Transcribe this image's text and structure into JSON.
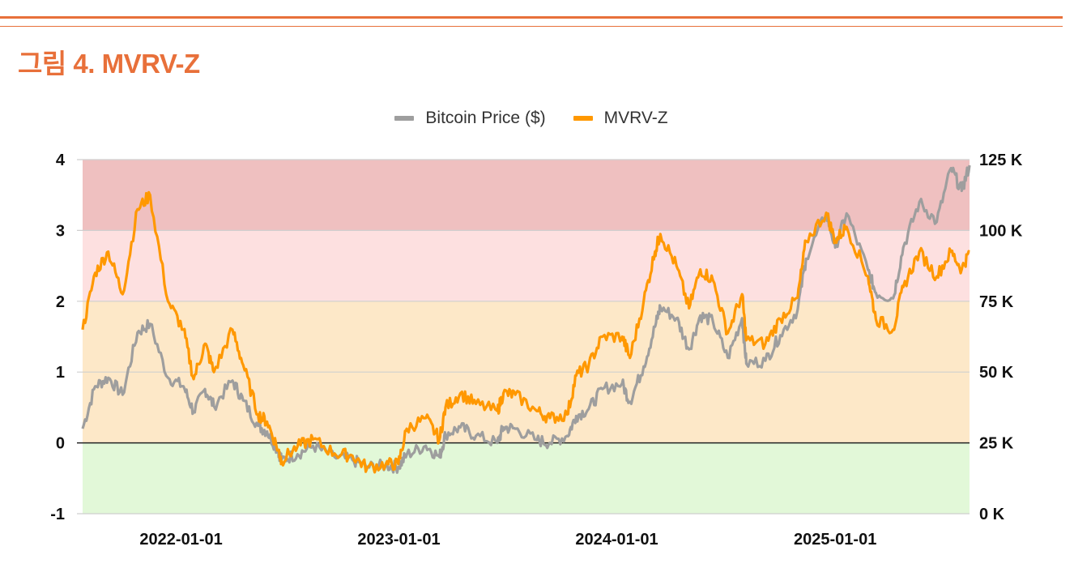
{
  "figure": {
    "title": "그림 4. MVRV-Z",
    "accent": "#e8703a"
  },
  "chart_data": {
    "type": "line",
    "legend": [
      {
        "name": "Bitcoin Price ($)",
        "color": "#9e9e9e"
      },
      {
        "name": "MVRV-Z",
        "color": "#ff9800"
      }
    ],
    "legend_position": "top-center",
    "x_ticks": [
      "2022-01-01",
      "2023-01-01",
      "2024-01-01",
      "2025-01-01"
    ],
    "x_range": [
      "2021-07-20",
      "2025-08-14"
    ],
    "y_left": {
      "min": -1,
      "max": 4,
      "ticks": [
        "-1",
        "0",
        "1",
        "2",
        "3",
        "4"
      ]
    },
    "y_right": {
      "min": 0,
      "max": 125000,
      "ticks": [
        "0 K",
        "25 K",
        "50 K",
        "75 K",
        "100 K",
        "125 K"
      ]
    },
    "bands": [
      {
        "from": 3,
        "to": 4,
        "color": "#efc0c0"
      },
      {
        "from": 2,
        "to": 3,
        "color": "#fde0e0"
      },
      {
        "from": 0,
        "to": 2,
        "color": "#fde8c8"
      },
      {
        "from": -1,
        "to": 0,
        "color": "#e2f8d8"
      }
    ],
    "zero_line": 0,
    "grid": true,
    "series": [
      {
        "name": "Bitcoin Price ($)",
        "axis": "right",
        "color": "#9e9e9e",
        "points": [
          [
            "2021-07-20",
            30000
          ],
          [
            "2021-08-10",
            45000
          ],
          [
            "2021-09-01",
            48000
          ],
          [
            "2021-09-25",
            42000
          ],
          [
            "2021-10-20",
            64000
          ],
          [
            "2021-11-10",
            67000
          ],
          [
            "2021-12-10",
            48000
          ],
          [
            "2022-01-05",
            45000
          ],
          [
            "2022-01-22",
            36000
          ],
          [
            "2022-02-10",
            44000
          ],
          [
            "2022-02-25",
            38000
          ],
          [
            "2022-03-28",
            47000
          ],
          [
            "2022-04-15",
            40000
          ],
          [
            "2022-05-10",
            31000
          ],
          [
            "2022-05-25",
            29000
          ],
          [
            "2022-06-13",
            22000
          ],
          [
            "2022-06-18",
            19000
          ],
          [
            "2022-07-15",
            21000
          ],
          [
            "2022-08-10",
            24000
          ],
          [
            "2022-09-15",
            20000
          ],
          [
            "2022-10-15",
            19000
          ],
          [
            "2022-11-09",
            16500
          ],
          [
            "2022-12-10",
            17000
          ],
          [
            "2022-12-31",
            16500
          ],
          [
            "2023-01-14",
            20800
          ],
          [
            "2023-02-15",
            24000
          ],
          [
            "2023-03-10",
            20000
          ],
          [
            "2023-03-20",
            28000
          ],
          [
            "2023-04-14",
            30500
          ],
          [
            "2023-05-10",
            27500
          ],
          [
            "2023-06-15",
            25000
          ],
          [
            "2023-06-25",
            30500
          ],
          [
            "2023-07-15",
            30000
          ],
          [
            "2023-08-20",
            26000
          ],
          [
            "2023-09-11",
            25000
          ],
          [
            "2023-10-10",
            27500
          ],
          [
            "2023-10-25",
            34500
          ],
          [
            "2023-11-15",
            37000
          ],
          [
            "2023-12-08",
            44000
          ],
          [
            "2024-01-10",
            46000
          ],
          [
            "2024-01-23",
            39500
          ],
          [
            "2024-02-15",
            52000
          ],
          [
            "2024-03-05",
            66000
          ],
          [
            "2024-03-14",
            73000
          ],
          [
            "2024-04-10",
            69000
          ],
          [
            "2024-05-01",
            58000
          ],
          [
            "2024-05-20",
            70000
          ],
          [
            "2024-06-10",
            68000
          ],
          [
            "2024-07-05",
            55000
          ],
          [
            "2024-07-29",
            69000
          ],
          [
            "2024-08-05",
            53000
          ],
          [
            "2024-09-06",
            54000
          ],
          [
            "2024-10-01",
            63000
          ],
          [
            "2024-10-30",
            72000
          ],
          [
            "2024-11-13",
            90000
          ],
          [
            "2024-12-17",
            106000
          ],
          [
            "2025-01-01",
            94000
          ],
          [
            "2025-01-20",
            106000
          ],
          [
            "2025-02-25",
            86000
          ],
          [
            "2025-03-10",
            78000
          ],
          [
            "2025-04-08",
            76000
          ],
          [
            "2025-04-25",
            94000
          ],
          [
            "2025-05-22",
            110000
          ],
          [
            "2025-06-20",
            103000
          ],
          [
            "2025-07-14",
            122000
          ],
          [
            "2025-08-01",
            114000
          ],
          [
            "2025-08-14",
            123000
          ]
        ]
      },
      {
        "name": "MVRV-Z",
        "axis": "left",
        "color": "#ff9800",
        "points": [
          [
            "2021-07-20",
            1.6
          ],
          [
            "2021-08-10",
            2.4
          ],
          [
            "2021-09-01",
            2.7
          ],
          [
            "2021-09-25",
            2.1
          ],
          [
            "2021-10-20",
            3.3
          ],
          [
            "2021-11-10",
            3.5
          ],
          [
            "2021-12-10",
            2.0
          ],
          [
            "2022-01-05",
            1.6
          ],
          [
            "2022-01-22",
            0.9
          ],
          [
            "2022-02-10",
            1.4
          ],
          [
            "2022-02-25",
            1.0
          ],
          [
            "2022-03-28",
            1.6
          ],
          [
            "2022-04-15",
            1.1
          ],
          [
            "2022-05-10",
            0.4
          ],
          [
            "2022-05-25",
            0.3
          ],
          [
            "2022-06-13",
            -0.1
          ],
          [
            "2022-06-18",
            -0.25
          ],
          [
            "2022-07-15",
            -0.05
          ],
          [
            "2022-08-10",
            0.05
          ],
          [
            "2022-09-15",
            -0.15
          ],
          [
            "2022-10-15",
            -0.18
          ],
          [
            "2022-11-09",
            -0.35
          ],
          [
            "2022-12-10",
            -0.3
          ],
          [
            "2022-12-31",
            -0.3
          ],
          [
            "2023-01-14",
            0.2
          ],
          [
            "2023-02-15",
            0.35
          ],
          [
            "2023-03-10",
            0.05
          ],
          [
            "2023-03-20",
            0.5
          ],
          [
            "2023-04-14",
            0.7
          ],
          [
            "2023-05-10",
            0.55
          ],
          [
            "2023-06-15",
            0.45
          ],
          [
            "2023-06-25",
            0.7
          ],
          [
            "2023-07-15",
            0.68
          ],
          [
            "2023-08-20",
            0.45
          ],
          [
            "2023-09-11",
            0.35
          ],
          [
            "2023-10-10",
            0.4
          ],
          [
            "2023-10-25",
            0.95
          ],
          [
            "2023-11-15",
            1.1
          ],
          [
            "2023-12-08",
            1.5
          ],
          [
            "2024-01-10",
            1.5
          ],
          [
            "2024-01-23",
            1.2
          ],
          [
            "2024-02-15",
            2.0
          ],
          [
            "2024-03-05",
            2.7
          ],
          [
            "2024-03-14",
            2.95
          ],
          [
            "2024-04-10",
            2.5
          ],
          [
            "2024-05-01",
            1.9
          ],
          [
            "2024-05-20",
            2.45
          ],
          [
            "2024-06-10",
            2.3
          ],
          [
            "2024-07-05",
            1.55
          ],
          [
            "2024-07-29",
            2.1
          ],
          [
            "2024-08-05",
            1.45
          ],
          [
            "2024-09-06",
            1.4
          ],
          [
            "2024-10-01",
            1.75
          ],
          [
            "2024-10-30",
            2.05
          ],
          [
            "2024-11-13",
            2.85
          ],
          [
            "2024-12-17",
            3.25
          ],
          [
            "2025-01-01",
            2.85
          ],
          [
            "2025-01-20",
            3.05
          ],
          [
            "2025-02-25",
            2.35
          ],
          [
            "2025-03-10",
            1.75
          ],
          [
            "2025-04-08",
            1.6
          ],
          [
            "2025-04-25",
            2.2
          ],
          [
            "2025-05-22",
            2.7
          ],
          [
            "2025-06-20",
            2.35
          ],
          [
            "2025-07-14",
            2.7
          ],
          [
            "2025-08-01",
            2.45
          ],
          [
            "2025-08-14",
            2.7
          ]
        ]
      }
    ]
  }
}
